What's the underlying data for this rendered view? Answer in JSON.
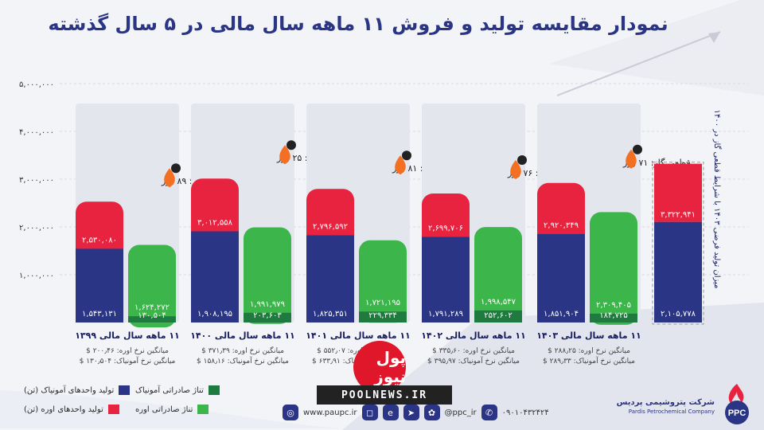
{
  "title": "نمودار مقایسه تولید و فروش ۱۱ ماهه سال مالی در ۵ سال گذشته",
  "colors": {
    "ammonia_production": "#2b3585",
    "urea_production": "#e8233f",
    "ammonia_export": "#1f7a3f",
    "urea_export": "#3cb54a",
    "title": "#2b3585"
  },
  "chart_data": {
    "type": "bar",
    "ylim": [
      0,
      5000000
    ],
    "y_ticks": [
      "۵,۰۰۰,۰۰۰",
      "۴,۰۰۰,۰۰۰",
      "۳,۰۰۰,۰۰۰",
      "۲,۰۰۰,۰۰۰",
      "۱,۰۰۰,۰۰۰"
    ],
    "y_tick_values": [
      5000000,
      4000000,
      3000000,
      2000000,
      1000000
    ],
    "grid": true,
    "legend_position": "bottom-left",
    "categories": [
      "۱۱ ماهه سال مالی ۱۳۹۹",
      "۱۱ ماهه سال مالی ۱۴۰۰",
      "۱۱ ماهه سال مالی ۱۴۰۱",
      "۱۱ ماهه سال مالی ۱۴۰۲",
      "۱۱ ماهه سال مالی ۱۴۰۳"
    ],
    "series": [
      {
        "name": "تولید واحدهای آمونیاک (تن)",
        "values": [
          1543131,
          1908195,
          1825351,
          1791289,
          1851904
        ],
        "labels": [
          "۱,۵۴۳,۱۳۱",
          "۱,۹۰۸,۱۹۵",
          "۱,۸۲۵,۳۵۱",
          "۱,۷۹۱,۲۸۹",
          "۱,۸۵۱,۹۰۴"
        ]
      },
      {
        "name": "تولید واحدهای اوره (تن)",
        "values": [
          2530080,
          3012558,
          2796592,
          2699706,
          2920349
        ],
        "labels": [
          "۲,۵۳۰,۰۸۰",
          "۳,۰۱۲,۵۵۸",
          "۲,۷۹۶,۵۹۲",
          "۲,۶۹۹,۷۰۶",
          "۲,۹۲۰,۳۴۹"
        ]
      },
      {
        "name": "تناژ صادراتی آمونیاک",
        "values": [
          130504,
          203603,
          229334,
          252602,
          184725
        ],
        "labels": [
          "۱۳۰,۵۰۴",
          "۲۰۳,۶۰۳",
          "۲۲۹,۳۳۴",
          "۲۵۲,۶۰۲",
          "۱۸۴,۷۲۵"
        ]
      },
      {
        "name": "تناژ صادراتی اوره",
        "values": [
          1624272,
          1991979,
          1721195,
          1998547,
          2309405
        ],
        "labels": [
          "۱,۶۲۴,۲۷۲",
          "۱,۹۹۱,۹۷۹",
          "۱,۷۲۱,۱۹۵",
          "۱,۹۹۸,۵۴۷",
          "۲,۳۰۹,۴۰۵"
        ]
      }
    ],
    "gas_cut": [
      "قطعی گاز: ۸۹ روز",
      "قطعی گاز: ۲۵ روز",
      "قطعی گاز: ۸۱ روز",
      "قطعی گاز: ۷۶ روز",
      "قطعی گاز: ۷۱ روز"
    ],
    "price_urea": [
      "میانگین نرخ اوره: ۲۰۰٫۴۶ $",
      "میانگین نرخ اوره: ۳۷۱٫۳۹ $",
      "میانگین نرخ اوره: ۵۵۲٫۰۷ $",
      "میانگین نرخ اوره: ۳۳۵٫۶۰ $",
      "میانگین نرخ اوره: ۲۸۸٫۲۵ $"
    ],
    "price_ammonia": [
      "میانگین نرخ آمونیاک: ۱۳۰٫۵۰۴ $",
      "میانگین نرخ آمونیاک: ۱۵۸٫۱۶ $",
      "میانگین نرخ آمونیاک: ۶۳۳٫۹۱ $",
      "میانگین نرخ آمونیاک: ۳۹۵٫۹۷ $",
      "میانگین نرخ آمونیاک: ۲۸۹٫۳۳ $"
    ],
    "annotations": [
      {
        "text": "میزان تولید فرضی ۱۴۰۳ با شرایط قطعی گاز در ۱۴۰۰",
        "series": "فرضی",
        "urea_value": 3322941,
        "urea_label": "۳,۳۲۲,۹۴۱",
        "ammonia_value": 2105778,
        "ammonia_label": "۲,۱۰۵,۷۷۸"
      }
    ]
  },
  "legend": {
    "ammonia_production": "تولید واحدهای آمونیاک (تن)",
    "urea_production": "تولید واحدهای اوره (تن)",
    "ammonia_export": "تناژ صادراتی آمونیاک",
    "urea_export": "تناژ صادراتی اوره"
  },
  "footer": {
    "website": "www.paupc.ir",
    "handle": "@ppc_ir",
    "phone": "۰۹۰۱۰۴۳۲۴۲۴",
    "company_fa": "شرکت پتروشیمی پردیس",
    "company_en": "Pardis Petrochemical Company",
    "logo_text": "PPC"
  },
  "watermark": {
    "fa": "پول نیوز",
    "url": "POOLNEWS.IR"
  }
}
